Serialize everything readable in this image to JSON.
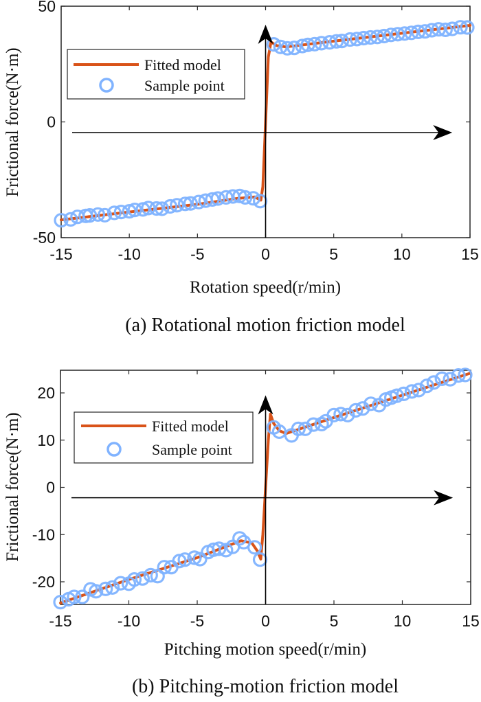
{
  "colors": {
    "fit": "#D95319",
    "sample": "#80B3FF",
    "axis": "#262626",
    "arrow": "#000000"
  },
  "chart_data": [
    {
      "type": "line",
      "caption": "(a) Rotational motion friction model",
      "xlabel": "Rotation speed(r/min)",
      "ylabel": "Frictional force(N·m)",
      "xlim": [
        -15,
        15
      ],
      "ylim": [
        -50,
        50
      ],
      "xticks": [
        -15,
        -10,
        -5,
        0,
        5,
        10,
        15
      ],
      "xtick_labels": [
        "-15",
        "-10",
        "-5",
        "0",
        "5",
        "10",
        "15"
      ],
      "yticks": [
        -50,
        0,
        50
      ],
      "ytick_labels": [
        "-50",
        "0",
        "50"
      ],
      "grid": false,
      "legend": {
        "placement": "upper-left",
        "entries": [
          "Fitted model",
          "Sample point"
        ]
      },
      "arrows": {
        "horizontal_y": -4.6,
        "horizontal_x_end": 13.7,
        "vertical_x": 0,
        "vertical_y_end": 42
      },
      "series": [
        {
          "name": "Fitted model",
          "kind": "line",
          "x": [
            -15,
            -10,
            -5,
            -2,
            -0.8,
            -0.35,
            -0.2,
            0,
            0.2,
            0.4,
            0.8,
            1.5,
            5,
            10,
            15
          ],
          "y": [
            -42.3,
            -38.9,
            -35.6,
            -33.0,
            -32.4,
            -33.8,
            -28,
            0,
            28,
            34.5,
            33.0,
            32.4,
            34.9,
            38.3,
            41.7
          ]
        },
        {
          "name": "Sample point",
          "kind": "scatter",
          "x": [
            -15,
            -14.3,
            -13.8,
            -13.2,
            -12.9,
            -12.3,
            -11.8,
            -11.1,
            -10.6,
            -10.0,
            -9.6,
            -9.0,
            -8.6,
            -8.0,
            -7.6,
            -7.0,
            -6.5,
            -5.9,
            -5.5,
            -4.9,
            -4.4,
            -3.9,
            -3.5,
            -2.9,
            -2.4,
            -1.9,
            -1.5,
            -0.9,
            -0.4,
            0.6,
            1.1,
            1.6,
            2.1,
            2.7,
            3.1,
            3.6,
            4.1,
            4.7,
            5.2,
            5.6,
            6.2,
            6.7,
            7.2,
            7.7,
            8.2,
            8.7,
            9.2,
            9.7,
            10.2,
            10.7,
            11.2,
            11.7,
            12.2,
            12.7,
            13.2,
            13.7,
            14.3,
            14.8
          ],
          "y": [
            -42.5,
            -42.1,
            -41.0,
            -40.6,
            -40.4,
            -40.0,
            -40.3,
            -39.3,
            -38.9,
            -38.6,
            -38.0,
            -37.8,
            -37.2,
            -37.4,
            -37.5,
            -36.5,
            -36.0,
            -35.4,
            -35.2,
            -34.6,
            -34.0,
            -33.5,
            -33.1,
            -32.6,
            -32.2,
            -32.0,
            -32.6,
            -33.0,
            -34.2,
            33.5,
            32.4,
            31.8,
            32.0,
            32.8,
            33.3,
            33.6,
            34.0,
            34.4,
            34.8,
            35.0,
            35.6,
            35.8,
            36.2,
            36.5,
            36.7,
            37.1,
            37.6,
            37.9,
            38.2,
            38.5,
            38.9,
            39.1,
            39.6,
            40.0,
            39.8,
            40.2,
            40.9,
            40.8
          ]
        }
      ]
    },
    {
      "type": "line",
      "caption": "(b) Pitching-motion friction model",
      "xlabel": "Pitching motion speed(r/min)",
      "ylabel": "Frictional force(N·m)",
      "xlim": [
        -15,
        15
      ],
      "ylim": [
        -24.8,
        24.8
      ],
      "xticks": [
        -15,
        -10,
        -5,
        0,
        5,
        10,
        15
      ],
      "xtick_labels": [
        "-15",
        "-10",
        "-5",
        "0",
        "5",
        "10",
        "15"
      ],
      "yticks": [
        -20,
        -10,
        0,
        10,
        20
      ],
      "ytick_labels": [
        "-20",
        "-10",
        "0",
        "10",
        "20"
      ],
      "grid": false,
      "legend": {
        "placement": "upper-left",
        "entries": [
          "Fitted model",
          "Sample point"
        ]
      },
      "arrows": {
        "horizontal_y": -2.2,
        "horizontal_x_end": 13.7,
        "vertical_x": 0,
        "vertical_y_end": 19.5
      },
      "series": [
        {
          "name": "Fitted model",
          "kind": "line",
          "x": [
            -15,
            -10,
            -5,
            -1.8,
            -1.0,
            -0.6,
            -0.35,
            -0.2,
            0,
            0.2,
            0.35,
            0.6,
            1.0,
            1.5,
            5,
            10,
            15
          ],
          "y": [
            -24.5,
            -19.5,
            -14.9,
            -11.3,
            -11.8,
            -13.5,
            -15.2,
            -10,
            0,
            10,
            15.5,
            13.5,
            12.0,
            11.4,
            14.8,
            19.5,
            24.2
          ],
          "note": "steep transition near zero"
        },
        {
          "name": "Sample point",
          "kind": "scatter",
          "x": [
            -15,
            -14.4,
            -14.0,
            -13.4,
            -12.8,
            -12.4,
            -11.7,
            -11.2,
            -10.6,
            -10.0,
            -9.6,
            -9.0,
            -8.4,
            -7.9,
            -7.4,
            -6.9,
            -6.3,
            -5.9,
            -5.2,
            -4.8,
            -4.2,
            -3.8,
            -3.4,
            -2.9,
            -2.4,
            -1.9,
            -1.6,
            -0.8,
            -0.4,
            0.6,
            1.0,
            1.9,
            2.4,
            2.9,
            3.5,
            4.1,
            4.4,
            5.0,
            5.5,
            6.0,
            6.6,
            7.1,
            7.7,
            8.3,
            8.8,
            9.2,
            9.6,
            10.1,
            10.7,
            11.2,
            11.8,
            12.3,
            12.9,
            13.5,
            14.1,
            14.6
          ],
          "y": [
            -24.3,
            -23.7,
            -23.2,
            -23.2,
            -21.6,
            -22.0,
            -21.5,
            -21.2,
            -20.3,
            -20.4,
            -19.5,
            -19.3,
            -18.6,
            -18.8,
            -16.9,
            -16.9,
            -15.6,
            -15.3,
            -14.9,
            -15.2,
            -13.7,
            -13.2,
            -13.0,
            -13.3,
            -12.6,
            -10.8,
            -11.6,
            -12.7,
            -15.3,
            12.7,
            11.8,
            11.0,
            12.4,
            12.4,
            13.3,
            13.4,
            14.0,
            15.3,
            15.5,
            15.3,
            16.3,
            16.7,
            17.7,
            17.4,
            18.6,
            19.0,
            19.4,
            19.8,
            20.3,
            20.6,
            21.5,
            22.2,
            23.0,
            22.9,
            23.7,
            23.8
          ]
        }
      ]
    }
  ]
}
